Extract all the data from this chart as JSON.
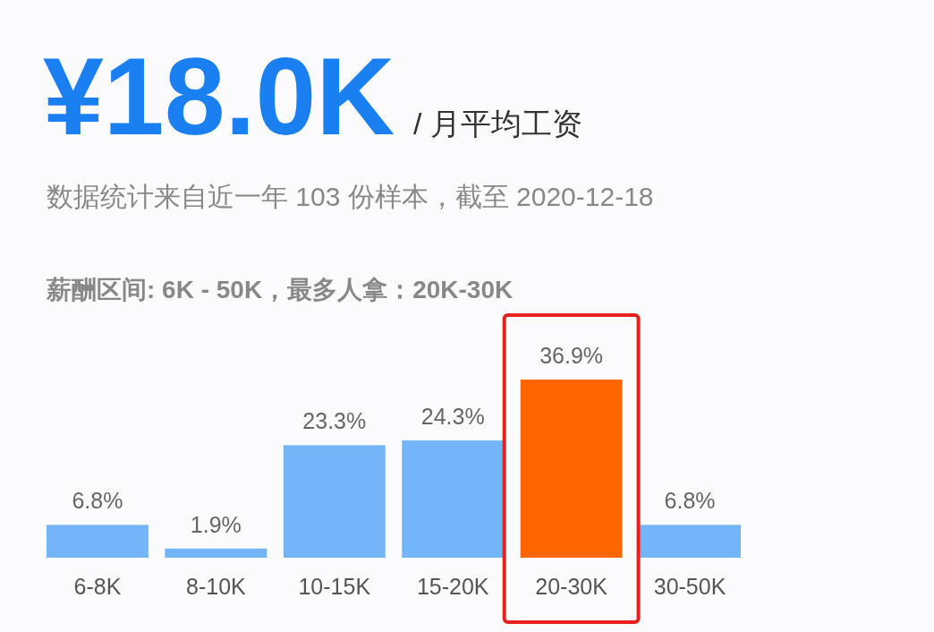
{
  "chart_data": {
    "type": "bar",
    "title": "¥18.0K",
    "subtitle": "/ 月平均工资",
    "annotations": [
      "数据统计来自近一年 103 份样本，截至 2020-12-18",
      "薪酬区间: 6K - 50K，最多人拿：20K-30K"
    ],
    "categories": [
      "6-8K",
      "8-10K",
      "10-15K",
      "15-20K",
      "20-30K",
      "30-50K"
    ],
    "values": [
      6.8,
      1.9,
      23.3,
      24.3,
      36.9,
      6.8
    ],
    "colors": [
      "#74b4f9",
      "#74b4f9",
      "#74b4f9",
      "#74b4f9",
      "#ff6600",
      "#74b4f9"
    ],
    "value_labels": [
      "6.8%",
      "1.9%",
      "23.3%",
      "24.3%",
      "36.9%",
      "6.8%"
    ]
  }
}
